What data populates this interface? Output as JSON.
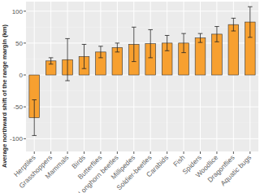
{
  "chart_data": {
    "type": "bar",
    "y_label": "Average northward shift of the range margin (km)",
    "categories": [
      "Herptiles",
      "Grasshoppers",
      "Mammals",
      "Birds",
      "Butterflies",
      "Longhorn beetles",
      "Millipedes",
      "Soldier-beetles",
      "Carabids",
      "Fish",
      "Spiders",
      "Woodlice",
      "Dragonflies",
      "Aquatic bugs"
    ],
    "values": [
      -67,
      22,
      24,
      29,
      36,
      43,
      48,
      49,
      50,
      50,
      58,
      64,
      79,
      83
    ],
    "errors": [
      28,
      5,
      33,
      19,
      9,
      7,
      27,
      22,
      12,
      15,
      7,
      12,
      10,
      24
    ],
    "color": "#f7a030",
    "ylim": [
      -120,
      115
    ],
    "yticks": [
      -100,
      -50,
      0,
      50,
      100
    ],
    "grid": true
  }
}
